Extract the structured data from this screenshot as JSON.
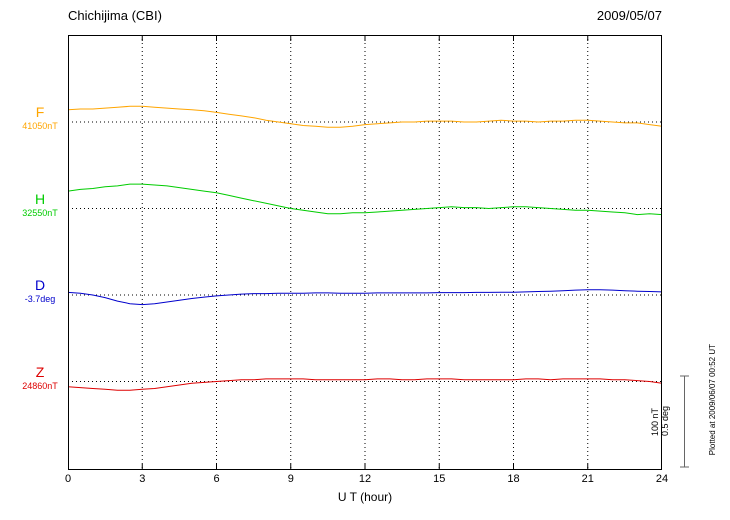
{
  "header": {
    "title": "Chichijima (CBI)",
    "date": "2009/05/07"
  },
  "x_axis": {
    "label": "U T (hour)",
    "min": 0,
    "max": 24,
    "ticks": [
      0,
      3,
      6,
      9,
      12,
      15,
      18,
      21,
      24
    ]
  },
  "components": [
    {
      "id": "F",
      "label": "F",
      "baseline_label": "41050nT",
      "color": "#FFA500"
    },
    {
      "id": "H",
      "label": "H",
      "baseline_label": "32550nT",
      "color": "#00CC00"
    },
    {
      "id": "D",
      "label": "D",
      "baseline_label": "-3.7deg",
      "color": "#0000CC"
    },
    {
      "id": "Z",
      "label": "Z",
      "baseline_label": "24860nT",
      "color": "#DD0000"
    }
  ],
  "scale_bar": {
    "line1": "100 nT",
    "line2": "0.5 deg"
  },
  "footer_note": "Plotted at 2009/06/07 00:52 UT",
  "chart_data": {
    "type": "line",
    "title": "Chichijima (CBI) geomagnetic variations 2009/05/07",
    "xlabel": "U T (hour)",
    "x_range": [
      0,
      24
    ],
    "x_ticks": [
      0,
      3,
      6,
      9,
      12,
      15,
      18,
      21,
      24
    ],
    "x_start": 0,
    "x_step": 0.5,
    "grid": "dotted vertical at 3-hour intervals, dotted horizontal baseline per component",
    "values_represent": "deviation from component baseline",
    "scale": {
      "nT_per_division": 100,
      "deg_per_division": 0.5
    },
    "series": [
      {
        "name": "F",
        "unit": "nT",
        "baseline": 41050,
        "color": "#FFA500",
        "values": [
          14,
          15,
          15,
          16,
          17,
          18,
          18,
          17,
          16,
          15,
          14,
          13,
          11,
          9,
          7,
          5,
          2,
          0,
          -2,
          -4,
          -5,
          -6,
          -6,
          -5,
          -3,
          -2,
          -1,
          0,
          0,
          1,
          1,
          1,
          0,
          0,
          1,
          2,
          1,
          1,
          0,
          1,
          1,
          2,
          2,
          1,
          0,
          -1,
          -1,
          -3,
          -5
        ]
      },
      {
        "name": "H",
        "unit": "nT",
        "baseline": 32550,
        "color": "#00CC00",
        "values": [
          20,
          22,
          23,
          25,
          26,
          28,
          28,
          27,
          26,
          24,
          22,
          20,
          18,
          15,
          12,
          9,
          6,
          3,
          0,
          -2,
          -4,
          -6,
          -6,
          -5,
          -5,
          -4,
          -3,
          -2,
          -1,
          0,
          1,
          2,
          1,
          1,
          0,
          1,
          2,
          2,
          1,
          0,
          -1,
          -2,
          -2,
          -3,
          -4,
          -5,
          -7,
          -6,
          -7
        ]
      },
      {
        "name": "D",
        "unit": "deg",
        "baseline": -3.7,
        "color": "#0000CC",
        "values": [
          0.015,
          0.01,
          0,
          -0.015,
          -0.035,
          -0.05,
          -0.055,
          -0.05,
          -0.04,
          -0.03,
          -0.02,
          -0.012,
          -0.005,
          0,
          0.005,
          0.008,
          0.008,
          0.01,
          0.01,
          0.01,
          0.012,
          0.012,
          0.01,
          0.01,
          0.01,
          0.012,
          0.012,
          0.012,
          0.012,
          0.012,
          0.014,
          0.014,
          0.014,
          0.015,
          0.015,
          0.016,
          0.016,
          0.018,
          0.02,
          0.022,
          0.025,
          0.028,
          0.03,
          0.03,
          0.028,
          0.025,
          0.022,
          0.02,
          0.018
        ]
      },
      {
        "name": "Z",
        "unit": "nT",
        "baseline": 24860,
        "color": "#DD0000",
        "values": [
          -6,
          -7,
          -8,
          -9,
          -10,
          -10,
          -9,
          -8,
          -6,
          -4,
          -2,
          -1,
          0,
          1,
          2,
          2,
          3,
          3,
          3,
          3,
          2,
          2,
          2,
          2,
          2,
          3,
          3,
          2,
          2,
          3,
          3,
          3,
          2,
          2,
          2,
          2,
          2,
          3,
          3,
          2,
          3,
          3,
          3,
          3,
          2,
          2,
          1,
          0,
          -2
        ]
      }
    ]
  }
}
